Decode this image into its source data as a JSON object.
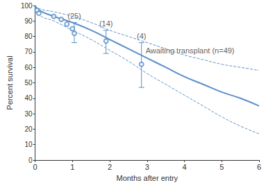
{
  "chart_data": {
    "type": "line",
    "x_label": "Months after entry",
    "y_label": "Percent survival",
    "xlim": [
      0,
      6
    ],
    "xticks": [
      0,
      1,
      2,
      3,
      4,
      5,
      6
    ],
    "ylim": [
      0,
      100
    ],
    "yticks": [
      0,
      10,
      20,
      30,
      40,
      50,
      60,
      70,
      80,
      90,
      100
    ],
    "grid": false,
    "color": "#5b8fc7",
    "series": [
      {
        "type": "line",
        "line_style": "solid",
        "x": [
          0,
          0.1,
          0.5,
          1,
          1.5,
          2,
          2.5,
          3,
          3.5,
          4,
          4.5,
          5,
          5.5,
          6
        ],
        "values": [
          100,
          97,
          93,
          89,
          84,
          78,
          72,
          66,
          60,
          54,
          49,
          44,
          40,
          35
        ]
      },
      {
        "type": "line",
        "line_style": "dashed",
        "x": [
          0,
          0.1,
          0.5,
          1,
          1.5,
          2,
          2.5,
          3,
          3.5,
          4,
          4.5,
          5,
          5.5,
          6
        ],
        "values": [
          100,
          98,
          96,
          93,
          89,
          84,
          80,
          76,
          72,
          68,
          65,
          62,
          60,
          58
        ]
      },
      {
        "type": "line",
        "line_style": "dashed",
        "x": [
          0,
          0.1,
          0.5,
          1,
          1.5,
          2,
          2.5,
          3,
          3.5,
          4,
          4.5,
          5,
          5.5,
          6
        ],
        "values": [
          100,
          94,
          90,
          84,
          78,
          71,
          64,
          56,
          49,
          42,
          35,
          28,
          22,
          17
        ]
      },
      {
        "type": "scatter",
        "marker": "circle",
        "x": [
          0.05,
          0.1,
          0.5,
          0.7,
          0.85,
          1.0,
          1.05,
          1.9,
          2.85
        ],
        "values": [
          97,
          95,
          93,
          91,
          88,
          85,
          82,
          77,
          62
        ],
        "error_low": [
          null,
          null,
          null,
          null,
          null,
          null,
          76,
          69,
          47
        ],
        "error_high": [
          null,
          null,
          null,
          null,
          null,
          null,
          89,
          84,
          76
        ],
        "point_labels": [
          null,
          null,
          null,
          null,
          null,
          null,
          "(25)",
          "(14)",
          "(4)"
        ]
      }
    ],
    "annotations": [
      {
        "text": "Awaiting transplant (n=49)",
        "x": 4.15,
        "y": 71
      }
    ]
  }
}
